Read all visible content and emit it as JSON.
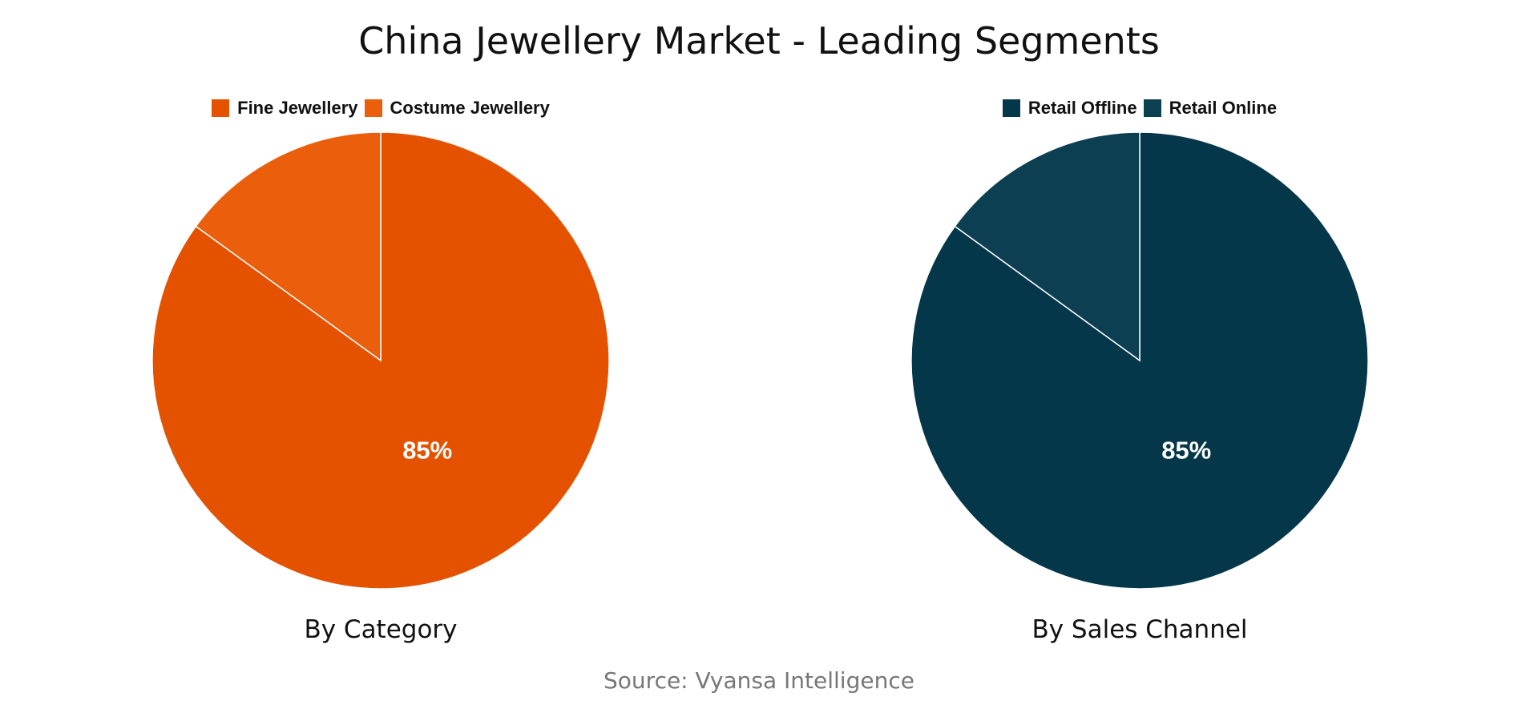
{
  "title": "China Jewellery Market - Leading Segments",
  "source": "Source: Vyansa Intelligence",
  "chart_data": [
    {
      "type": "pie",
      "subtitle": "By Category",
      "labels": [
        "Fine Jewellery",
        "Costume Jewellery"
      ],
      "values": [
        85,
        15
      ],
      "colors": [
        "#E45200",
        "#EA5E0C"
      ],
      "data_labels": [
        "85%",
        ""
      ],
      "legend": "top-center"
    },
    {
      "type": "pie",
      "subtitle": "By Sales Channel",
      "labels": [
        "Retail Offline",
        "Retail Online"
      ],
      "values": [
        85,
        15
      ],
      "colors": [
        "#043749",
        "#0B3F51"
      ],
      "data_labels": [
        "85%",
        ""
      ],
      "legend": "top-center"
    }
  ]
}
